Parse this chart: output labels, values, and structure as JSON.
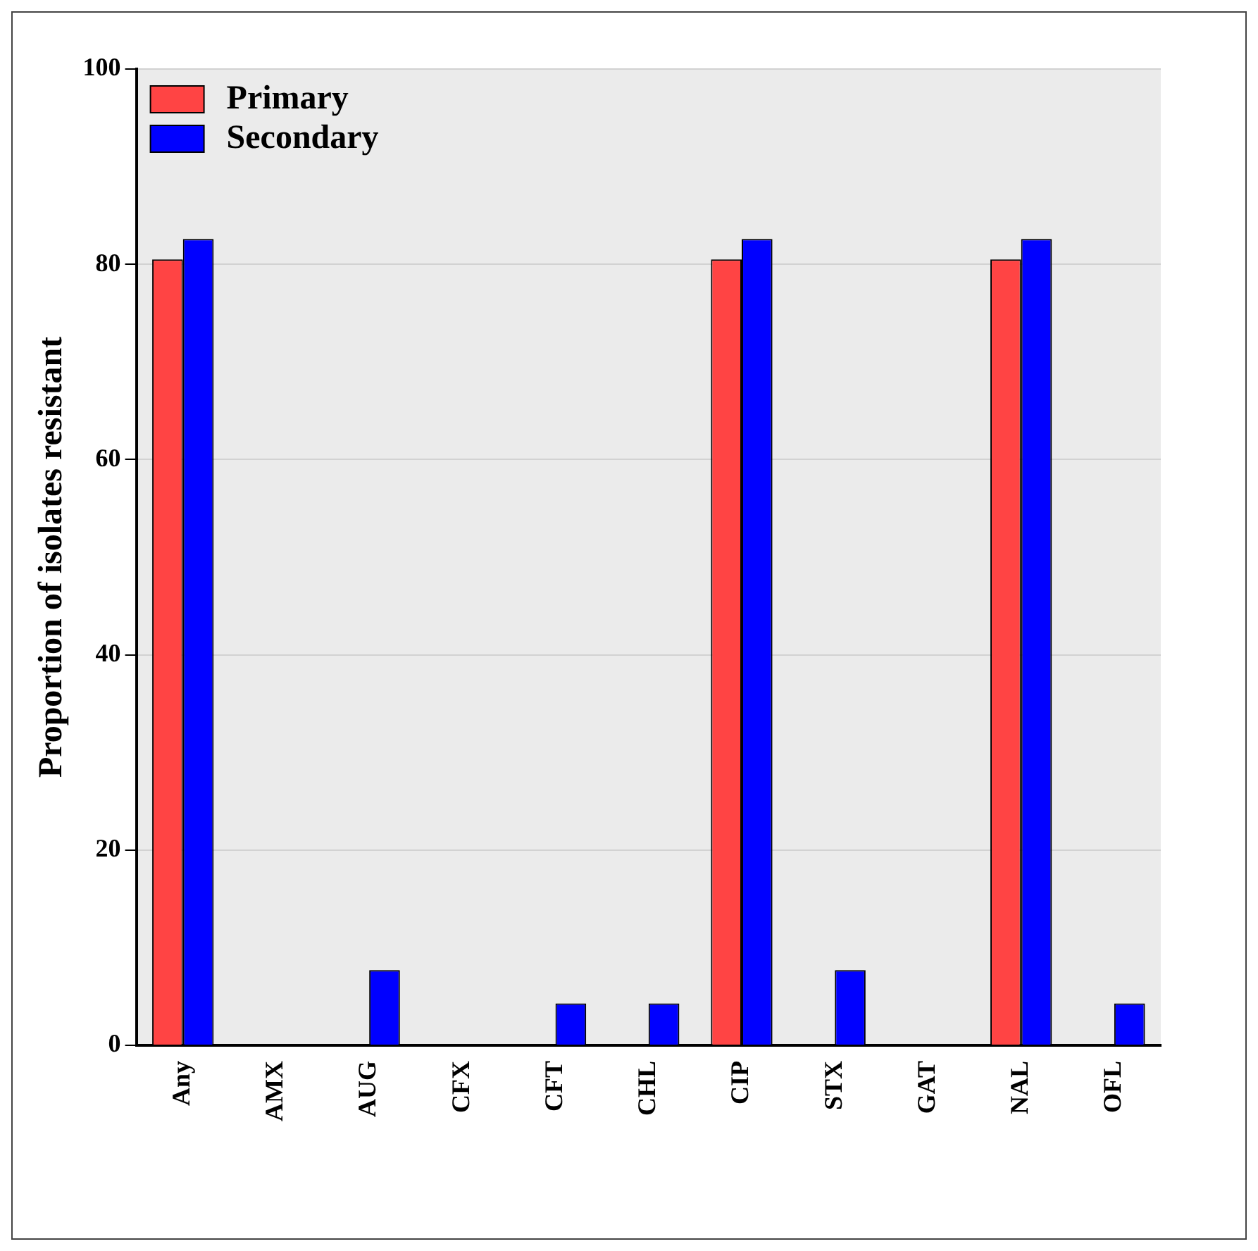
{
  "chart_data": {
    "type": "bar",
    "ylabel": "Proportion of isolates resistant",
    "categories": [
      "Any",
      "AMX",
      "AUG",
      "CFX",
      "CFT",
      "CHL",
      "CIP",
      "STX",
      "GAT",
      "NAL",
      "OFL"
    ],
    "series": [
      {
        "name": "Primary",
        "color": "#ff4444",
        "values": [
          80.5,
          0,
          0,
          0,
          0,
          0,
          80.5,
          0,
          0,
          80.5,
          0
        ]
      },
      {
        "name": "Secondary",
        "color": "#0000ff",
        "values": [
          82.6,
          0,
          7.7,
          0,
          4.3,
          4.3,
          82.6,
          7.7,
          0,
          82.6,
          4.3
        ]
      }
    ],
    "ylim": [
      0,
      100
    ],
    "yticks": [
      0,
      20,
      40,
      60,
      80,
      100
    ],
    "grid": "y",
    "legend": "top left"
  }
}
